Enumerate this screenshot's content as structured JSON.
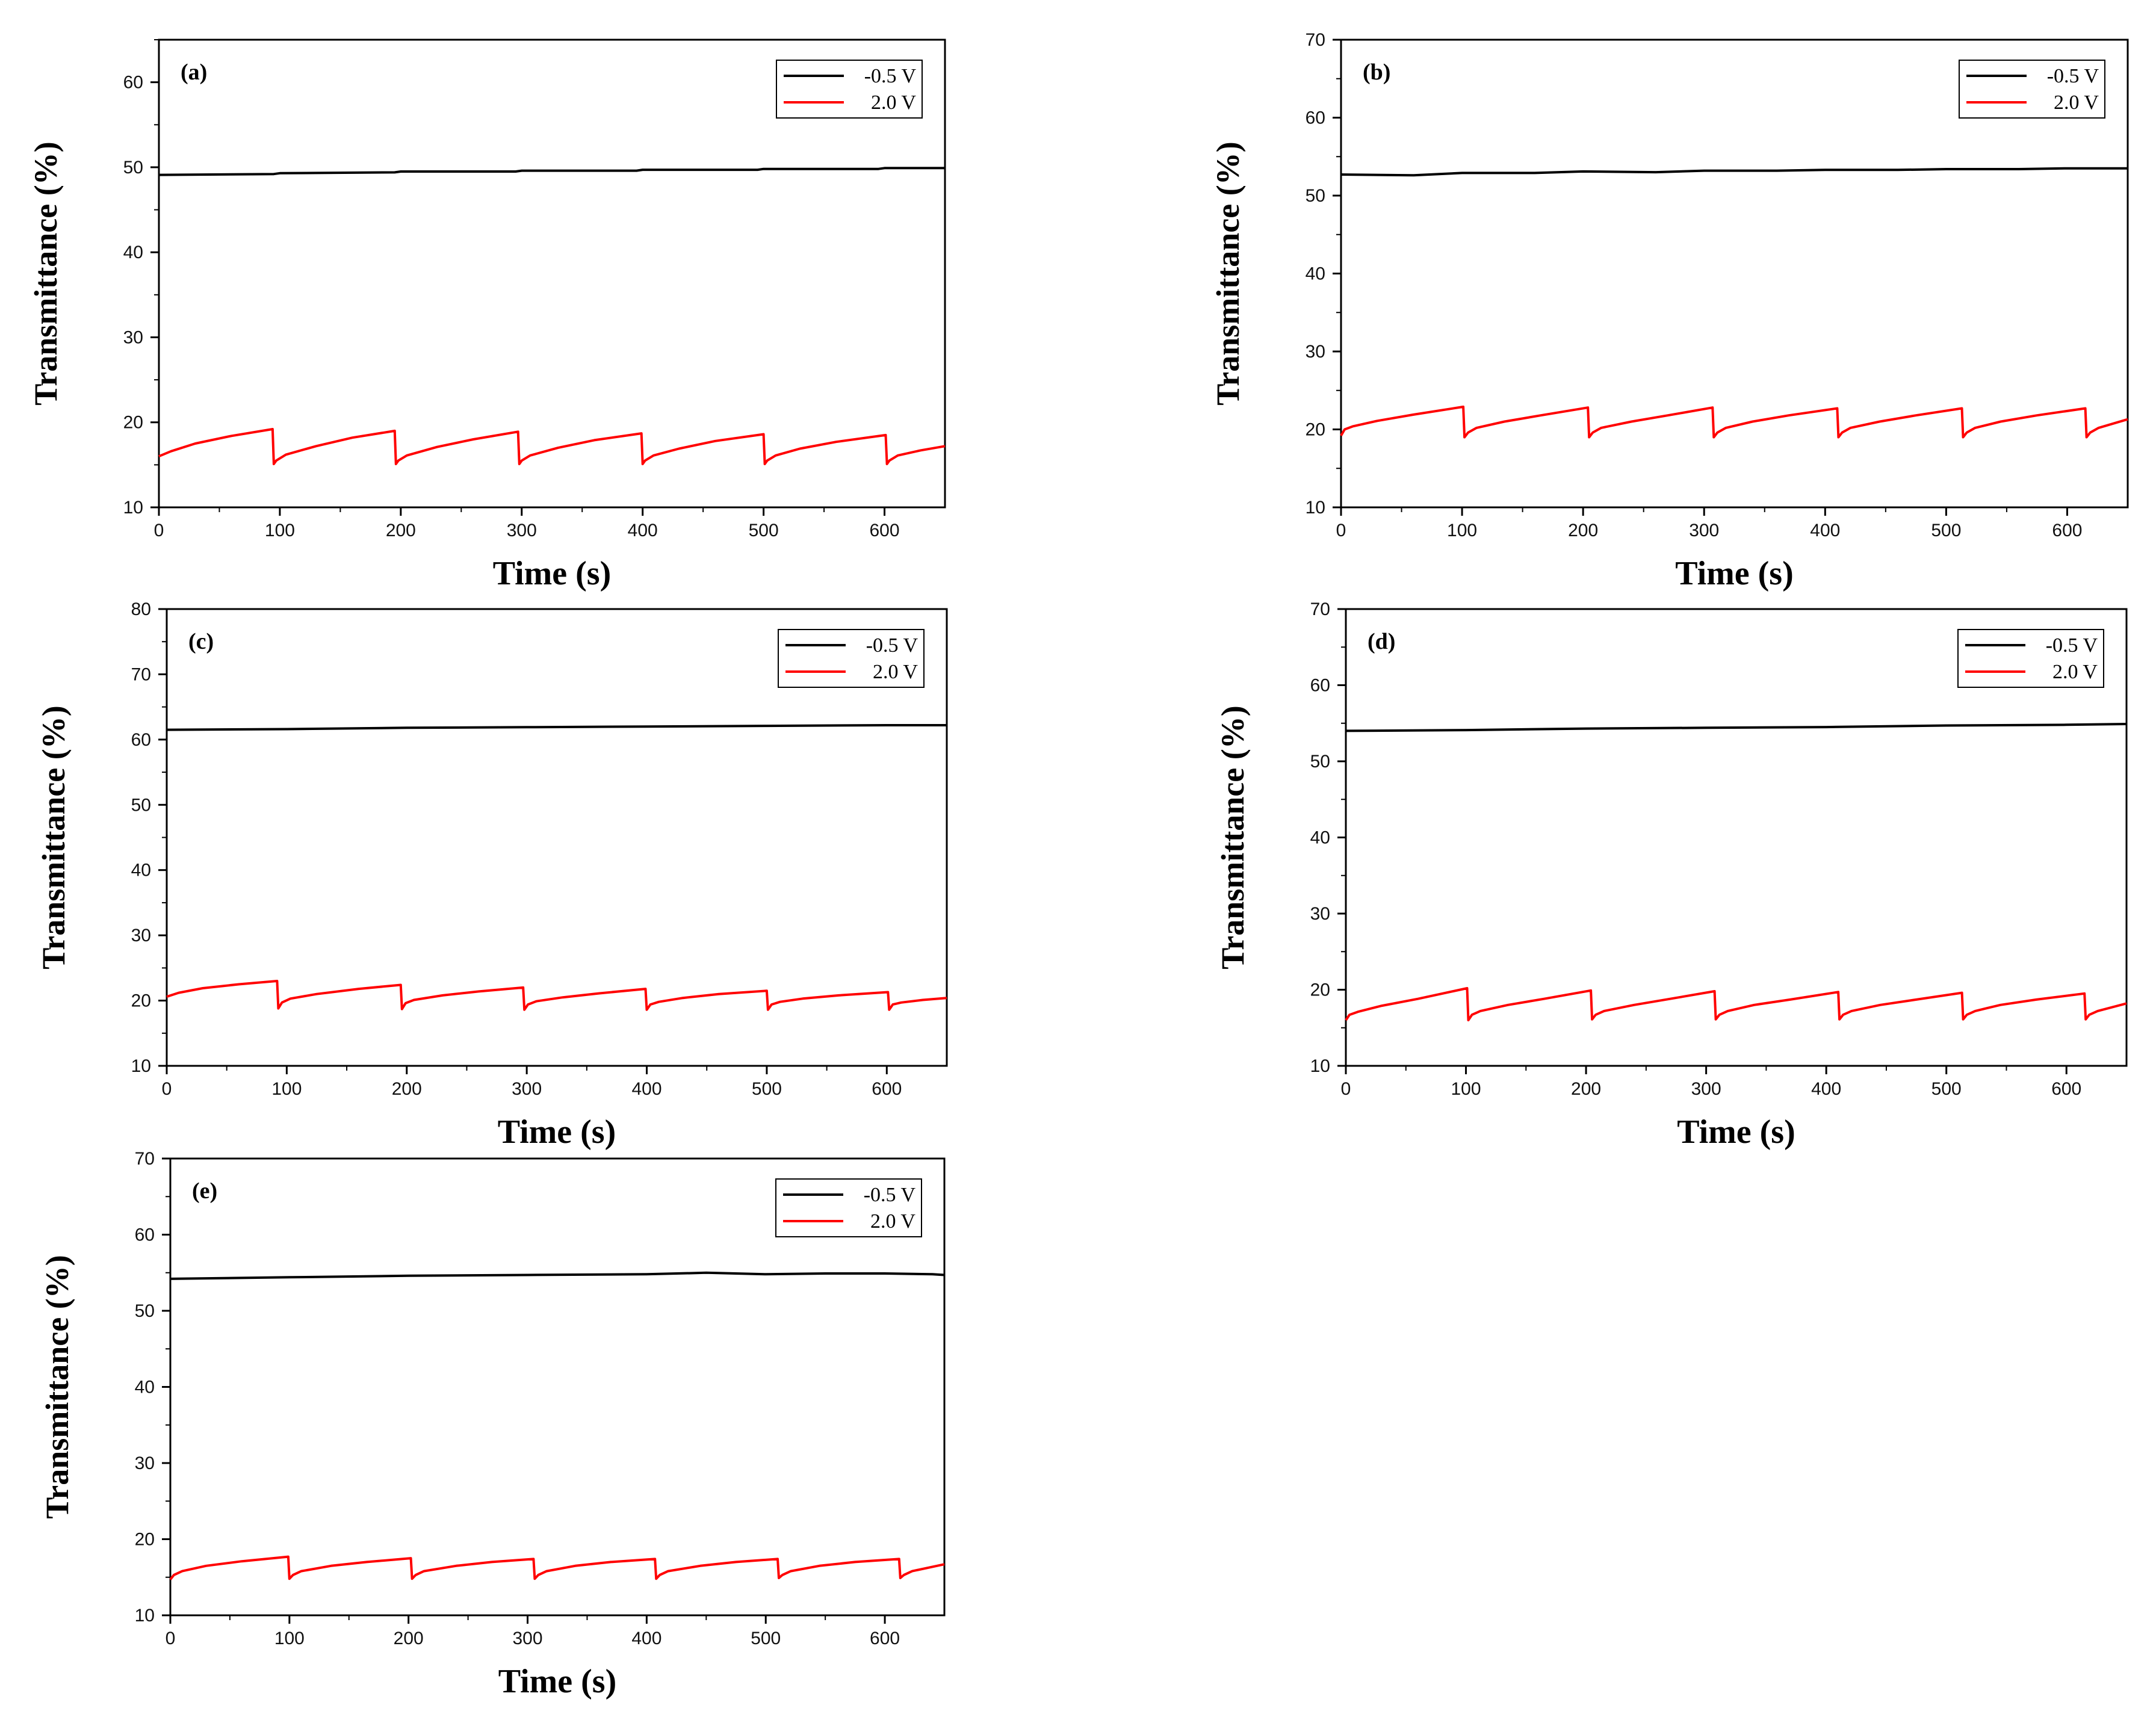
{
  "chart_data": [
    {
      "type": "line",
      "panel_label": "(a)",
      "title": "",
      "xlabel": "Time (s)",
      "ylabel": "Transmittance (%)",
      "xlim": [
        0,
        650
      ],
      "ylim": [
        10,
        65
      ],
      "x_ticks": [
        0,
        100,
        200,
        300,
        400,
        500,
        600
      ],
      "y_ticks": [
        10,
        20,
        30,
        40,
        50,
        60
      ],
      "legend": [
        "-0.5 V",
        "2.0 V"
      ],
      "legend_position": "top-right",
      "series": [
        {
          "name": "-0.5 V",
          "color": "#000000",
          "x": [
            0,
            95,
            100,
            195,
            200,
            295,
            300,
            395,
            400,
            495,
            500,
            595,
            600,
            650
          ],
          "y": [
            49.1,
            49.2,
            49.3,
            49.4,
            49.5,
            49.5,
            49.6,
            49.6,
            49.7,
            49.7,
            49.8,
            49.8,
            49.9,
            49.9
          ]
        },
        {
          "name": "2.0 V",
          "color": "#ff0000",
          "x": [
            0,
            10,
            30,
            60,
            94,
            95,
            97,
            105,
            130,
            160,
            195,
            196,
            198,
            205,
            230,
            260,
            297,
            298,
            300,
            307,
            330,
            360,
            399,
            400,
            402,
            409,
            430,
            460,
            500,
            501,
            503,
            510,
            530,
            560,
            601,
            602,
            604,
            611,
            630,
            650
          ],
          "y": [
            16.0,
            16.6,
            17.5,
            18.4,
            19.2,
            15.1,
            15.5,
            16.2,
            17.2,
            18.2,
            19.0,
            15.1,
            15.5,
            16.1,
            17.1,
            18.0,
            18.9,
            15.1,
            15.5,
            16.1,
            17.0,
            17.9,
            18.7,
            15.1,
            15.5,
            16.1,
            16.9,
            17.8,
            18.6,
            15.1,
            15.5,
            16.1,
            16.9,
            17.7,
            18.5,
            15.1,
            15.5,
            16.1,
            16.7,
            17.2
          ]
        }
      ]
    },
    {
      "type": "line",
      "panel_label": "(b)",
      "title": "",
      "xlabel": "Time (s)",
      "ylabel": "Transmittance (%)",
      "xlim": [
        0,
        650
      ],
      "ylim": [
        10,
        70
      ],
      "x_ticks": [
        0,
        100,
        200,
        300,
        400,
        500,
        600
      ],
      "y_ticks": [
        10,
        20,
        30,
        40,
        50,
        60,
        70
      ],
      "legend": [
        "-0.5 V",
        "2.0 V"
      ],
      "legend_position": "top-right",
      "series": [
        {
          "name": "-0.5 V",
          "color": "#000000",
          "x": [
            0,
            60,
            100,
            160,
            200,
            260,
            300,
            360,
            400,
            460,
            500,
            560,
            600,
            650
          ],
          "y": [
            52.7,
            52.6,
            52.9,
            52.9,
            53.1,
            53.0,
            53.2,
            53.2,
            53.3,
            53.3,
            53.4,
            53.4,
            53.5,
            53.5
          ]
        },
        {
          "name": "2.0 V",
          "color": "#ff0000",
          "x": [
            0,
            3,
            10,
            30,
            60,
            101,
            102,
            105,
            112,
            135,
            165,
            204,
            205,
            208,
            215,
            240,
            270,
            307,
            308,
            311,
            318,
            340,
            370,
            410,
            411,
            414,
            421,
            445,
            475,
            513,
            514,
            517,
            524,
            545,
            575,
            615,
            616,
            619,
            626,
            650
          ],
          "y": [
            19.2,
            20.0,
            20.4,
            21.1,
            21.9,
            22.9,
            19.0,
            19.6,
            20.2,
            21.0,
            21.8,
            22.8,
            19.0,
            19.6,
            20.2,
            21.0,
            21.8,
            22.8,
            19.0,
            19.6,
            20.2,
            21.0,
            21.8,
            22.7,
            19.0,
            19.6,
            20.2,
            21.0,
            21.8,
            22.7,
            19.0,
            19.6,
            20.2,
            21.0,
            21.8,
            22.7,
            19.0,
            19.6,
            20.2,
            21.3
          ]
        }
      ]
    },
    {
      "type": "line",
      "panel_label": "(c)",
      "title": "",
      "xlabel": "Time (s)",
      "ylabel": "Transmittance (%)",
      "xlim": [
        0,
        650
      ],
      "ylim": [
        10,
        80
      ],
      "x_ticks": [
        0,
        100,
        200,
        300,
        400,
        500,
        600
      ],
      "y_ticks": [
        10,
        20,
        30,
        40,
        50,
        60,
        70,
        80
      ],
      "legend": [
        "-0.5 V",
        "2.0 V"
      ],
      "legend_position": "top-right",
      "series": [
        {
          "name": "-0.5 V",
          "color": "#000000",
          "x": [
            0,
            100,
            200,
            300,
            400,
            500,
            600,
            650
          ],
          "y": [
            61.5,
            61.6,
            61.8,
            61.9,
            62.0,
            62.1,
            62.2,
            62.2
          ]
        },
        {
          "name": "2.0 V",
          "color": "#ff0000",
          "x": [
            0,
            10,
            30,
            60,
            92,
            93,
            96,
            103,
            125,
            160,
            195,
            196,
            199,
            206,
            230,
            260,
            297,
            298,
            301,
            308,
            330,
            360,
            399,
            400,
            403,
            410,
            430,
            460,
            500,
            501,
            504,
            511,
            530,
            560,
            601,
            602,
            605,
            612,
            630,
            650
          ],
          "y": [
            20.6,
            21.2,
            21.9,
            22.5,
            23.0,
            18.8,
            19.7,
            20.3,
            21.0,
            21.8,
            22.4,
            18.7,
            19.6,
            20.1,
            20.8,
            21.4,
            22.0,
            18.6,
            19.4,
            19.9,
            20.5,
            21.1,
            21.8,
            18.6,
            19.4,
            19.8,
            20.4,
            21.0,
            21.5,
            18.6,
            19.4,
            19.8,
            20.3,
            20.8,
            21.3,
            18.6,
            19.4,
            19.7,
            20.1,
            20.4
          ]
        }
      ]
    },
    {
      "type": "line",
      "panel_label": "(d)",
      "title": "",
      "xlabel": "Time (s)",
      "ylabel": "Transmittance (%)",
      "xlim": [
        0,
        650
      ],
      "ylim": [
        10,
        70
      ],
      "x_ticks": [
        0,
        100,
        200,
        300,
        400,
        500,
        600
      ],
      "y_ticks": [
        10,
        20,
        30,
        40,
        50,
        60,
        70
      ],
      "legend": [
        "-0.5 V",
        "2.0 V"
      ],
      "legend_position": "top-right",
      "series": [
        {
          "name": "-0.5 V",
          "color": "#000000",
          "x": [
            0,
            100,
            200,
            300,
            400,
            500,
            600,
            650
          ],
          "y": [
            54.0,
            54.1,
            54.3,
            54.4,
            54.5,
            54.7,
            54.8,
            54.9
          ]
        },
        {
          "name": "2.0 V",
          "color": "#ff0000",
          "x": [
            0,
            3,
            10,
            30,
            60,
            101,
            102,
            105,
            112,
            135,
            165,
            204,
            205,
            208,
            215,
            240,
            270,
            307,
            308,
            311,
            318,
            340,
            370,
            410,
            411,
            414,
            421,
            445,
            475,
            513,
            514,
            517,
            524,
            545,
            575,
            615,
            616,
            619,
            626,
            650
          ],
          "y": [
            16.0,
            16.7,
            17.1,
            17.9,
            18.8,
            20.2,
            16.0,
            16.7,
            17.2,
            18.0,
            18.8,
            19.9,
            16.1,
            16.7,
            17.2,
            18.0,
            18.8,
            19.8,
            16.1,
            16.7,
            17.2,
            18.0,
            18.7,
            19.7,
            16.1,
            16.7,
            17.2,
            18.0,
            18.7,
            19.6,
            16.1,
            16.7,
            17.2,
            18.0,
            18.7,
            19.5,
            16.1,
            16.7,
            17.2,
            18.2
          ]
        }
      ]
    },
    {
      "type": "line",
      "panel_label": "(e)",
      "title": "",
      "xlabel": "Time (s)",
      "ylabel": "Transmittance (%)",
      "xlim": [
        0,
        650
      ],
      "ylim": [
        10,
        70
      ],
      "x_ticks": [
        0,
        100,
        200,
        300,
        400,
        500,
        600
      ],
      "y_ticks": [
        10,
        20,
        30,
        40,
        50,
        60,
        70
      ],
      "legend": [
        "-0.5 V",
        "2.0 V"
      ],
      "legend_position": "top-right",
      "series": [
        {
          "name": "-0.5 V",
          "color": "#000000",
          "x": [
            0,
            100,
            200,
            300,
            400,
            450,
            500,
            550,
            600,
            640,
            650
          ],
          "y": [
            54.2,
            54.4,
            54.6,
            54.7,
            54.8,
            55.0,
            54.8,
            54.9,
            54.9,
            54.8,
            54.7
          ]
        },
        {
          "name": "2.0 V",
          "color": "#ff0000",
          "x": [
            0,
            3,
            10,
            30,
            60,
            99,
            100,
            103,
            110,
            135,
            165,
            202,
            203,
            206,
            213,
            240,
            270,
            305,
            306,
            309,
            316,
            340,
            370,
            407,
            408,
            411,
            418,
            445,
            475,
            510,
            511,
            514,
            521,
            545,
            575,
            612,
            613,
            616,
            623,
            650
          ],
          "y": [
            14.7,
            15.3,
            15.8,
            16.5,
            17.1,
            17.7,
            14.8,
            15.3,
            15.8,
            16.5,
            17.0,
            17.5,
            14.8,
            15.3,
            15.8,
            16.5,
            17.0,
            17.4,
            14.8,
            15.3,
            15.8,
            16.5,
            17.0,
            17.4,
            14.8,
            15.3,
            15.8,
            16.5,
            17.0,
            17.4,
            14.9,
            15.3,
            15.8,
            16.5,
            17.0,
            17.4,
            14.9,
            15.3,
            15.8,
            16.7
          ]
        }
      ]
    }
  ]
}
